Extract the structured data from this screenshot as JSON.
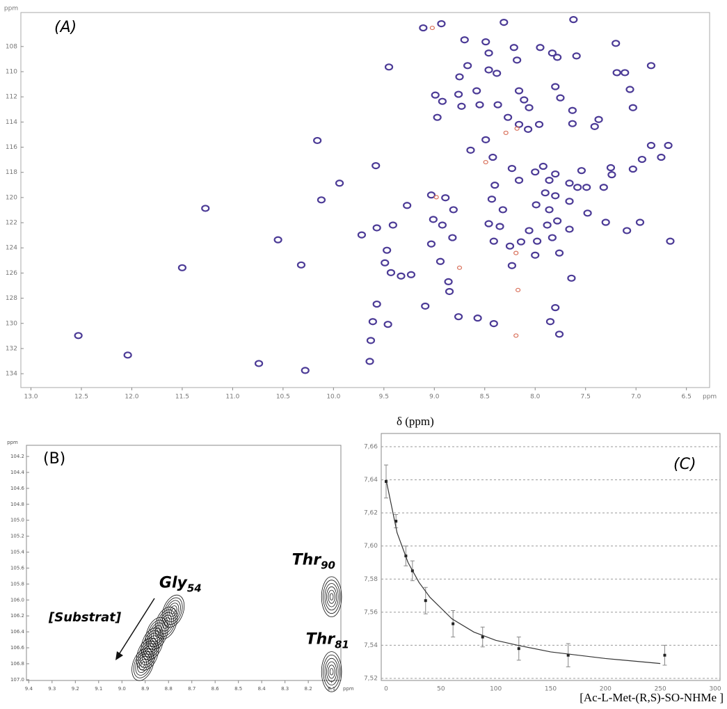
{
  "chart_data": [
    {
      "type": "scatter",
      "panel_label": "(A)",
      "x_unit": "ppm",
      "y_unit": "ppm",
      "xlim": [
        6.27,
        13.1
      ],
      "x_reversed": true,
      "ylim": [
        105.3,
        135.1
      ],
      "y_reversed": true,
      "xticks": [
        {
          "value": 13,
          "label": "13.0"
        },
        12.5,
        {
          "value": 12,
          "label": "12.0"
        },
        11.5,
        {
          "value": 11,
          "label": "11.0"
        },
        10.5,
        {
          "value": 10,
          "label": "10.0"
        },
        9.5,
        {
          "value": 9,
          "label": "9.0"
        },
        8.5,
        {
          "value": 8,
          "label": "8.0"
        },
        7.5,
        {
          "value": 7,
          "label": "7.0"
        },
        6.5
      ],
      "yticks": [
        108,
        110,
        112,
        114,
        116,
        118,
        120,
        122,
        124,
        126,
        128,
        130,
        132,
        134
      ],
      "series": [
        {
          "color": "#4b3a96",
          "x": [
            12.53,
            12.04,
            11.5,
            11.27,
            10.74,
            10.28,
            10.55,
            10.32,
            10.16,
            10.12,
            9.94,
            9.45,
            9.58,
            9.72,
            9.57,
            9.41,
            9.47,
            9.49,
            9.43,
            9.33,
            9.23,
            9.57,
            9.61,
            9.46,
            9.63,
            9.64,
            9.27,
            9.09,
            9.11,
            8.93,
            8.99,
            8.92,
            8.97,
            9.03,
            8.89,
            9.01,
            8.81,
            8.92,
            8.82,
            8.94,
            9.03,
            8.86,
            8.85,
            8.76,
            8.57,
            8.41,
            8.7,
            8.67,
            8.75,
            8.76,
            8.73,
            8.58,
            8.55,
            8.64,
            8.49,
            8.46,
            8.46,
            8.38,
            8.37,
            8.27,
            8.49,
            8.42,
            8.23,
            8.16,
            8.4,
            8.43,
            8.32,
            8.46,
            8.35,
            8.41,
            8.25,
            8.14,
            8.06,
            7.98,
            8.0,
            8.23,
            8.31,
            8.21,
            8.18,
            8.16,
            8.11,
            8.06,
            8.16,
            7.96,
            8.07,
            8.0,
            7.92,
            7.86,
            7.8,
            7.9,
            7.8,
            7.86,
            7.99,
            7.78,
            7.88,
            7.83,
            7.95,
            7.83,
            7.78,
            7.62,
            7.59,
            7.8,
            7.75,
            7.63,
            7.63,
            7.54,
            7.66,
            7.58,
            7.49,
            7.66,
            7.48,
            7.66,
            7.76,
            7.64,
            7.8,
            7.85,
            7.76,
            7.41,
            7.37,
            7.32,
            7.25,
            7.3,
            7.24,
            7.2,
            7.19,
            7.11,
            7.03,
            7.09,
            7.03,
            6.96,
            6.85,
            6.94,
            6.85,
            6.75,
            6.68,
            6.66,
            7.06
          ],
          "y": [
            130.97,
            132.52,
            125.58,
            120.86,
            133.19,
            133.74,
            123.36,
            125.36,
            115.47,
            120.19,
            118.86,
            109.63,
            117.47,
            122.97,
            122.41,
            122.19,
            124.19,
            125.19,
            125.97,
            126.24,
            126.13,
            128.47,
            129.86,
            130.08,
            131.36,
            133.02,
            120.63,
            128.63,
            106.52,
            106.19,
            111.86,
            112.36,
            113.63,
            119.8,
            120.02,
            121.74,
            120.97,
            122.19,
            123.19,
            125.08,
            123.69,
            126.69,
            127.47,
            129.47,
            129.58,
            130.02,
            107.47,
            109.52,
            110.41,
            111.8,
            112.75,
            111.52,
            112.63,
            116.24,
            107.63,
            108.52,
            109.86,
            110.13,
            112.63,
            113.63,
            115.41,
            116.8,
            117.69,
            118.63,
            119.02,
            120.13,
            120.97,
            122.08,
            122.3,
            123.47,
            123.86,
            123.52,
            122.63,
            123.47,
            124.58,
            125.41,
            106.08,
            108.08,
            109.08,
            111.52,
            112.24,
            112.86,
            114.19,
            114.19,
            114.58,
            117.97,
            117.52,
            118.63,
            118.13,
            119.63,
            119.86,
            120.97,
            120.58,
            121.86,
            122.19,
            123.19,
            108.08,
            108.52,
            108.86,
            105.86,
            108.75,
            111.19,
            112.08,
            113.08,
            114.13,
            117.86,
            118.86,
            119.19,
            119.19,
            120.3,
            121.24,
            122.52,
            124.41,
            126.41,
            128.75,
            129.86,
            130.86,
            114.36,
            113.8,
            119.19,
            117.63,
            121.97,
            118.19,
            107.75,
            110.08,
            110.08,
            112.86,
            122.63,
            117.74,
            121.97,
            109.52,
            116.97,
            115.86,
            116.8,
            115.86,
            123.47,
            111.41
          ]
        },
        {
          "color": "#d9705a",
          "x": [
            8.49,
            8.18,
            8.29,
            8.19,
            8.75,
            8.19,
            8.17,
            8.98,
            9.02
          ],
          "y": [
            117.19,
            114.52,
            114.86,
            124.41,
            125.58,
            130.97,
            127.35,
            119.97,
            106.52
          ]
        }
      ]
    },
    {
      "type": "contour",
      "panel_label": "(B)",
      "x_unit": "ppm",
      "y_unit": "ppm",
      "annotation": "[Substrat]",
      "color": "#111111",
      "xlim": [
        8.06,
        9.41
      ],
      "x_reversed": true,
      "ylim": [
        104.06,
        107.01
      ],
      "y_reversed": true,
      "xticks": [
        9.4,
        9.3,
        9.2,
        9.1,
        {
          "value": 9,
          "label": "9.0"
        },
        8.9,
        8.8,
        8.7,
        8.6,
        8.5,
        8.4,
        8.3,
        8.2,
        8.1
      ],
      "yticks": [
        104.2,
        104.4,
        104.6,
        104.8,
        {
          "value": 105,
          "label": "105.0"
        },
        105.2,
        105.4,
        105.6,
        105.8,
        {
          "value": 106,
          "label": "106.0"
        },
        106.2,
        106.4,
        106.6,
        106.8,
        {
          "value": 107,
          "label": "107.0"
        }
      ],
      "series": [
        {
          "label": "Gly",
          "label_sub": "54",
          "x": [
            8.78,
            8.81,
            8.85,
            8.87,
            8.89,
            8.91
          ],
          "y": [
            106.14,
            106.29,
            106.42,
            106.55,
            106.68,
            106.81
          ]
        },
        {
          "label": "Thr",
          "label_sub": "90",
          "x": [
            8.1
          ],
          "y": [
            105.96
          ]
        },
        {
          "label": "Thr",
          "label_sub": "81",
          "x": [
            8.1
          ],
          "y": [
            106.9
          ]
        }
      ]
    },
    {
      "type": "line",
      "panel_label": "(C)",
      "y_label": "δ (ppm)",
      "x_label": "[Ac-L-Met-(R,S)-SO-NHMe ]",
      "xlim": [
        0,
        300
      ],
      "ylim": [
        7.52,
        7.668
      ],
      "grid": true,
      "xticks": [
        0,
        50,
        100,
        150,
        200,
        250,
        300
      ],
      "yticks": [
        {
          "value": 7.52,
          "label": "7,52"
        },
        {
          "value": 7.54,
          "label": "7,54"
        },
        {
          "value": 7.56,
          "label": "7,56"
        },
        {
          "value": 7.58,
          "label": "7,58"
        },
        {
          "value": 7.6,
          "label": "7,60"
        },
        {
          "value": 7.62,
          "label": "7,62"
        },
        {
          "value": 7.64,
          "label": "7,64"
        },
        {
          "value": 7.66,
          "label": "7,66"
        }
      ],
      "series": [
        {
          "mode": "markers",
          "color": "#222222",
          "x": [
            0,
            9,
            18,
            24,
            36,
            61,
            88,
            121,
            166,
            254
          ],
          "values": [
            7.639,
            7.615,
            7.594,
            7.585,
            7.567,
            7.553,
            7.545,
            7.538,
            7.534,
            7.534
          ],
          "errors": [
            0.01,
            0.004,
            0.006,
            0.006,
            0.008,
            0.008,
            0.006,
            0.007,
            0.007,
            0.006
          ]
        },
        {
          "mode": "line",
          "color": "#333333",
          "x": [
            0,
            10,
            20,
            30,
            40,
            60,
            80,
            100,
            120,
            150,
            200,
            250
          ],
          "values": [
            7.64,
            7.608,
            7.59,
            7.578,
            7.569,
            7.556,
            7.548,
            7.543,
            7.54,
            7.536,
            7.532,
            7.529
          ]
        }
      ]
    }
  ]
}
